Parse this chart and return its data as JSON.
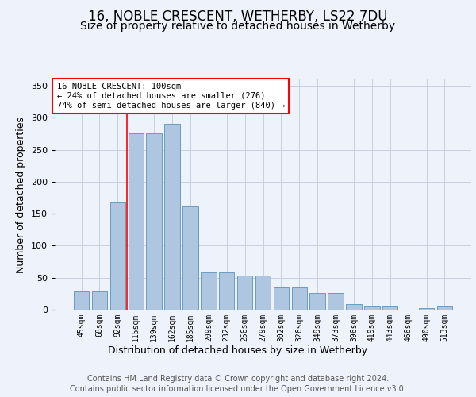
{
  "title": "16, NOBLE CRESCENT, WETHERBY, LS22 7DU",
  "subtitle": "Size of property relative to detached houses in Wetherby",
  "xlabel": "Distribution of detached houses by size in Wetherby",
  "ylabel": "Number of detached properties",
  "categories": [
    "45sqm",
    "68sqm",
    "92sqm",
    "115sqm",
    "139sqm",
    "162sqm",
    "185sqm",
    "209sqm",
    "232sqm",
    "256sqm",
    "279sqm",
    "302sqm",
    "326sqm",
    "349sqm",
    "373sqm",
    "396sqm",
    "419sqm",
    "443sqm",
    "466sqm",
    "490sqm",
    "513sqm"
  ],
  "values": [
    29,
    29,
    167,
    275,
    275,
    290,
    162,
    58,
    58,
    53,
    53,
    35,
    35,
    26,
    26,
    9,
    5,
    5,
    0,
    2,
    5
  ],
  "bar_color": "#aec6df",
  "bar_edge_color": "#6a9cbf",
  "annotation_text_line1": "16 NOBLE CRESCENT: 100sqm",
  "annotation_text_line2": "← 24% of detached houses are smaller (276)",
  "annotation_text_line3": "74% of semi-detached houses are larger (840) →",
  "red_line_x": 2.5,
  "footer_line1": "Contains HM Land Registry data © Crown copyright and database right 2024.",
  "footer_line2": "Contains public sector information licensed under the Open Government Licence v3.0.",
  "ylim": [
    0,
    360
  ],
  "yticks": [
    0,
    50,
    100,
    150,
    200,
    250,
    300,
    350
  ],
  "background_color": "#eef2fa",
  "plot_background_color": "#eef2fa",
  "grid_color": "#c8cfe0",
  "title_fontsize": 12,
  "subtitle_fontsize": 10,
  "ylabel_fontsize": 9,
  "xlabel_fontsize": 9,
  "tick_fontsize": 7,
  "footer_fontsize": 7,
  "ann_fontsize": 7.5
}
